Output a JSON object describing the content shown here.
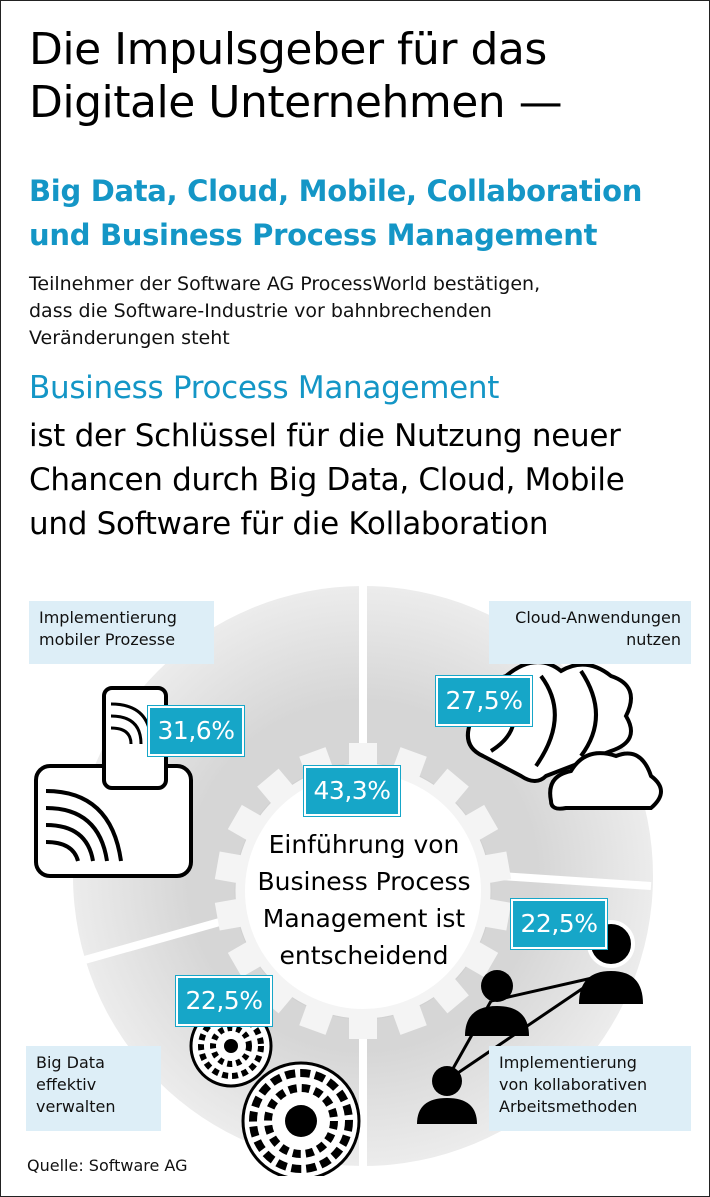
{
  "header": {
    "title_line1": "Die Impulsgeber für das",
    "title_line2": "Digitale Unternehmen —",
    "subtitle_line1": "Big Data, Cloud, Mobile, Collaboration",
    "subtitle_line2": "und Business Process Management",
    "intro_line1": "Teilnehmer der Software AG ProcessWorld bestätigen,",
    "intro_line2": "dass die Software-Industrie vor bahnbrechenden",
    "intro_line3": "Veränderungen steht",
    "bpm_title": "Business Process Management",
    "bpm_line1": "ist der Schlüssel für die Nutzung neuer",
    "bpm_line2": "Chancen durch Big Data, Cloud, Mobile",
    "bpm_line3": "und Software für die Kollaboration"
  },
  "segments": {
    "mobile": {
      "label_line1": "Implementierung",
      "label_line2": "mobiler Prozesse",
      "value": "31,6%",
      "icon": "mobile-device-icon"
    },
    "cloud": {
      "label_line1": "Cloud-Anwendungen",
      "label_line2": "nutzen",
      "value": "27,5%",
      "icon": "cloud-icon"
    },
    "collaboration": {
      "label_line1": "Implementierung",
      "label_line2": "von kollaborativen",
      "label_line3": "Arbeitsmethoden",
      "value": "22,5%",
      "icon": "people-network-icon"
    },
    "bigdata": {
      "label_line1": "Big Data",
      "label_line2": "effektiv",
      "label_line3": "verwalten",
      "value": "22,5%",
      "icon": "data-disc-icon"
    }
  },
  "center": {
    "value": "43,3%",
    "line1": "Einführung von",
    "line2": "Business Process",
    "line3": "Management ist",
    "line4": "entscheidend",
    "icon": "gear-icon"
  },
  "footer": {
    "source": "Quelle: Software AG"
  },
  "colors": {
    "accent": "#1496c6",
    "badge": "#16a6c8",
    "label_bg": "#ddeef7",
    "ring": "#e2e2e2"
  }
}
